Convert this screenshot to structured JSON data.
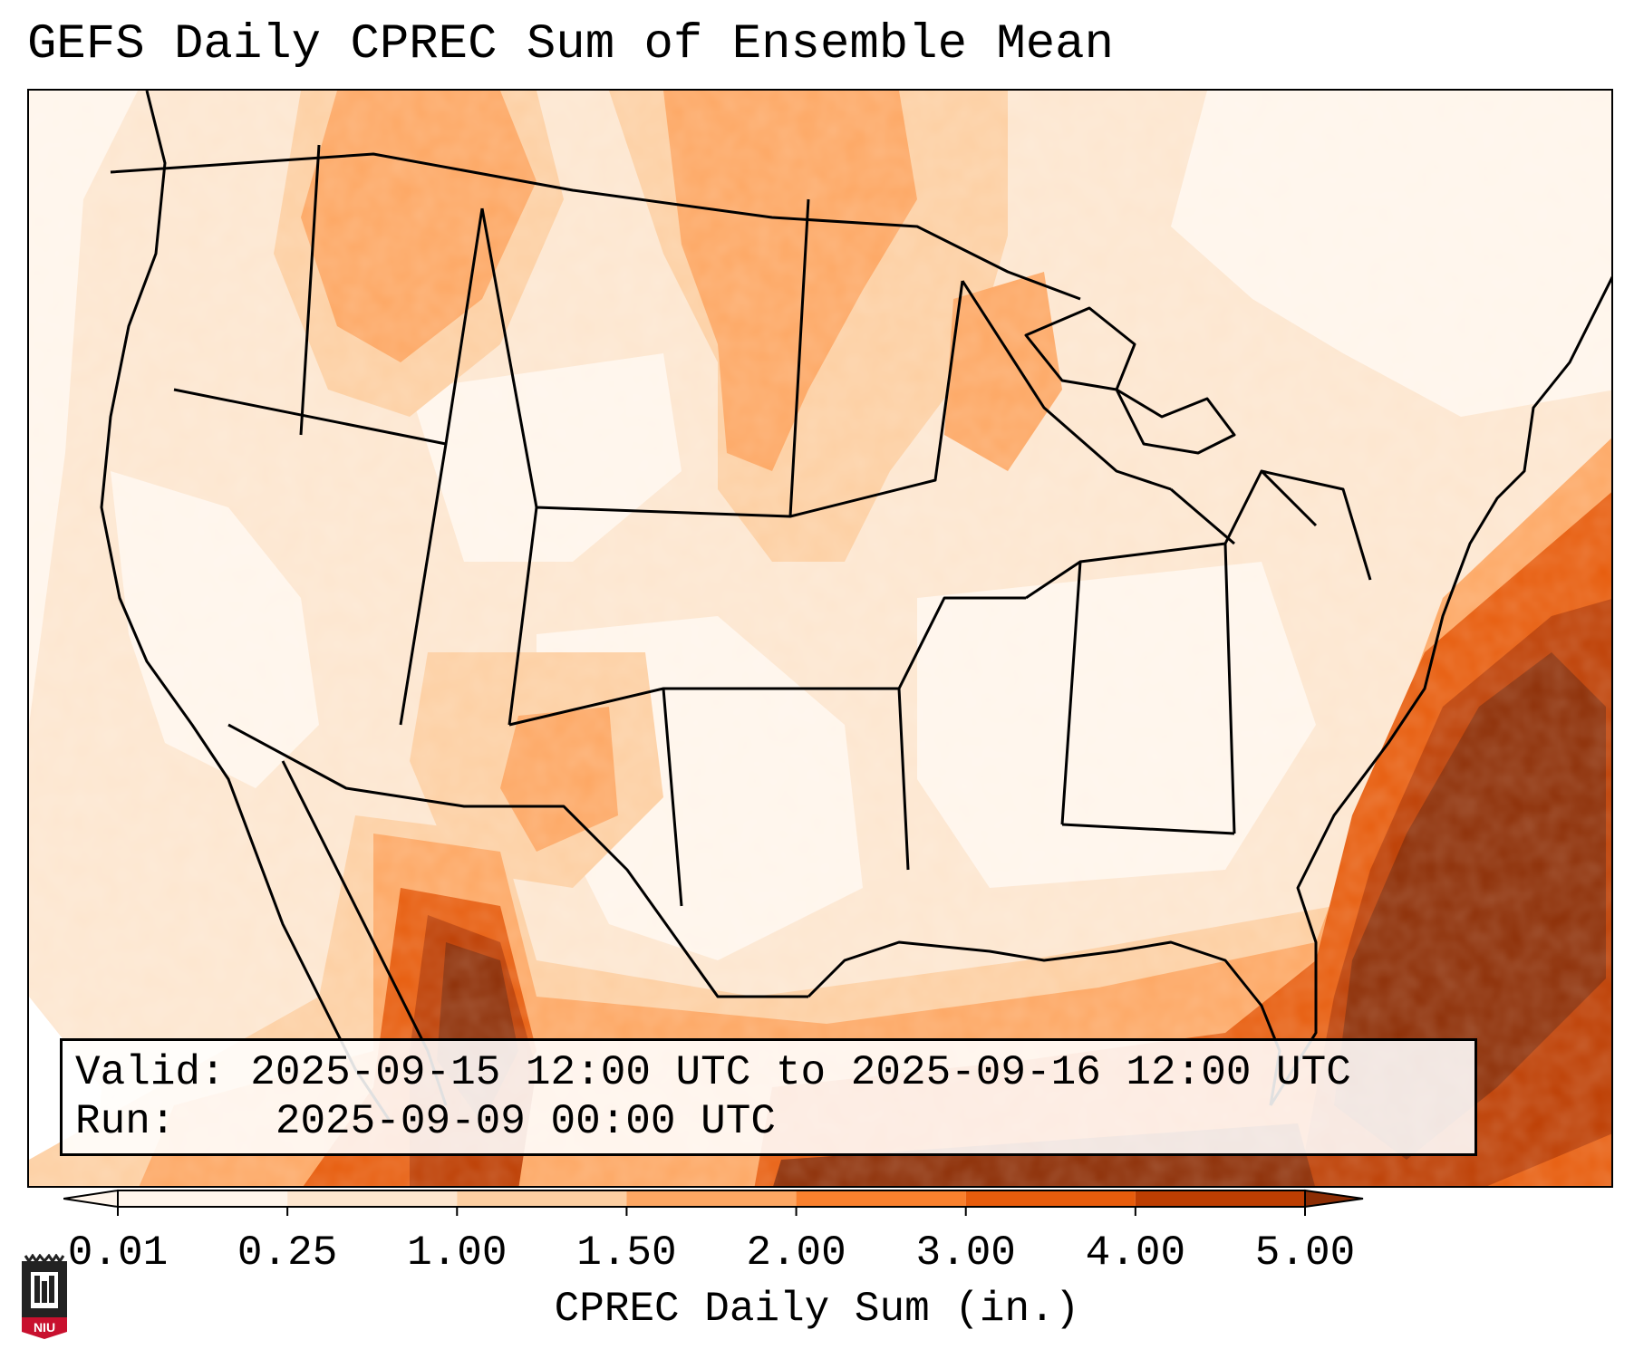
{
  "title": "GEFS Daily CPREC Sum of Ensemble Mean",
  "info": {
    "valid_label": "Valid:",
    "valid_value": "2025-09-15 12:00 UTC to 2025-09-16 12:00 UTC",
    "run_label": "Run:",
    "run_value": "2025-09-09 00:00 UTC"
  },
  "colorbar": {
    "label": "CPREC Daily Sum (in.)",
    "ticks": [
      "0.01",
      "0.25",
      "1.00",
      "1.50",
      "2.00",
      "3.00",
      "4.00",
      "5.00"
    ],
    "colors": [
      "#fff5eb",
      "#fde6cf",
      "#fdcfa2",
      "#fda763",
      "#f9802d",
      "#e75c0c",
      "#bd3e02",
      "#8c2d04"
    ],
    "extend": "both"
  },
  "logo": {
    "text": "NIU",
    "color": "#c8102e"
  }
}
